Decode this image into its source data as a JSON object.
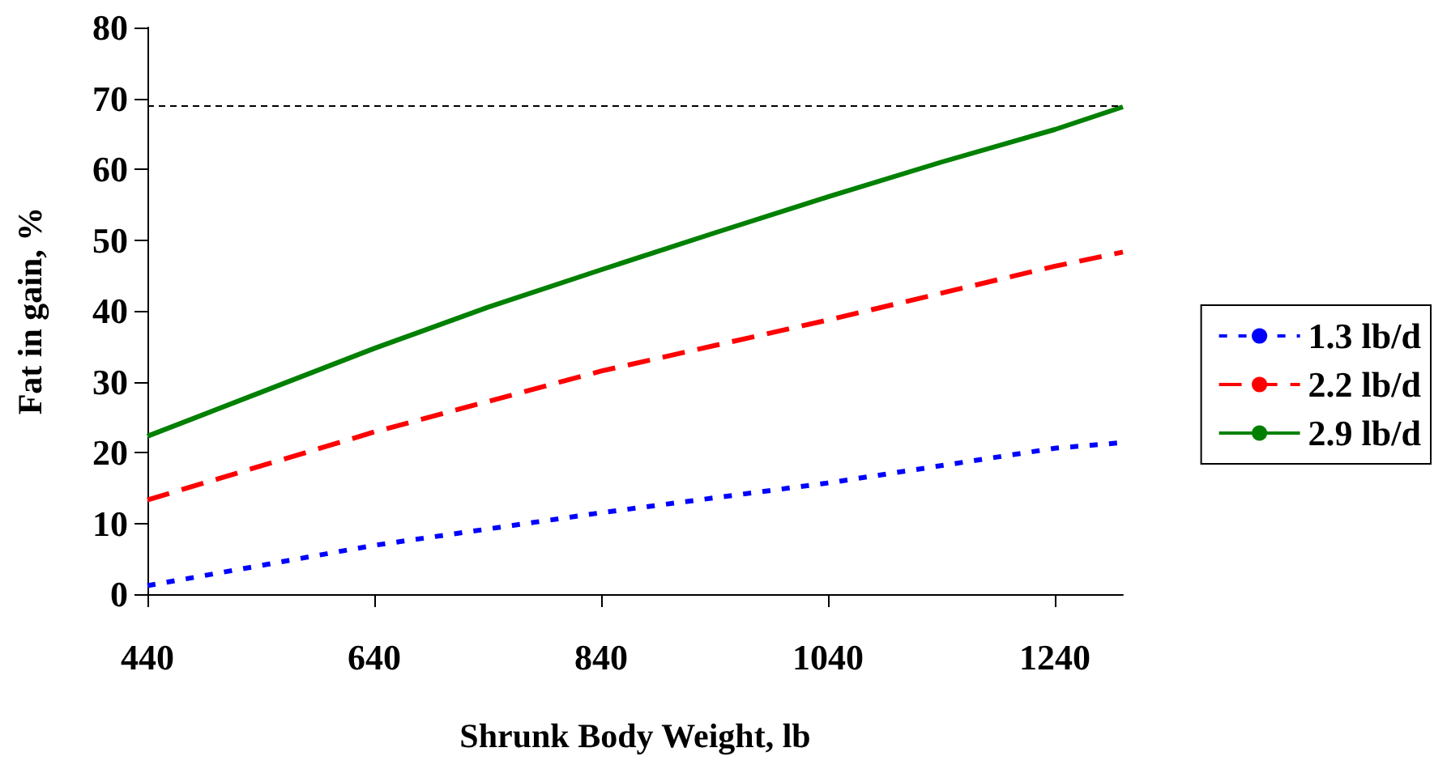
{
  "chart_data": {
    "type": "line",
    "xlabel": "Shrunk Body Weight, lb",
    "ylabel": "Fat in gain, %",
    "xlim": [
      440,
      1300
    ],
    "xticks": [
      440,
      640,
      840,
      1040,
      1240
    ],
    "ylim": [
      0,
      80
    ],
    "yticks": [
      0,
      10,
      20,
      30,
      40,
      50,
      60,
      70,
      80
    ],
    "grid": false,
    "legend": "right",
    "marker": "none",
    "series": [
      {
        "name": "1.3 lb/d",
        "color": "#0000ff",
        "line_style": "dotted",
        "x": [
          440,
          640,
          840,
          1040,
          1240,
          1300
        ],
        "values": [
          1.2,
          6.9,
          11.5,
          15.7,
          20.6,
          21.4
        ]
      },
      {
        "name": "2.2 lb/d",
        "color": "#ff0000",
        "line_style": "dashed",
        "x": [
          440,
          640,
          840,
          1040,
          1240,
          1300
        ],
        "values": [
          13.3,
          22.9,
          31.5,
          38.7,
          46.3,
          48.3
        ]
      },
      {
        "name": "2.9 lb/d",
        "color": "#008000",
        "line_style": "solid",
        "x": [
          440,
          540,
          640,
          740,
          840,
          940,
          1040,
          1140,
          1240,
          1300
        ],
        "values": [
          22.3,
          28.5,
          34.7,
          40.5,
          45.8,
          51,
          56.1,
          61,
          65.6,
          68.8
        ]
      }
    ],
    "ref_lines": [
      {
        "axis": "y",
        "value": 69,
        "color": "#000000",
        "line_style": "dashed"
      }
    ]
  }
}
